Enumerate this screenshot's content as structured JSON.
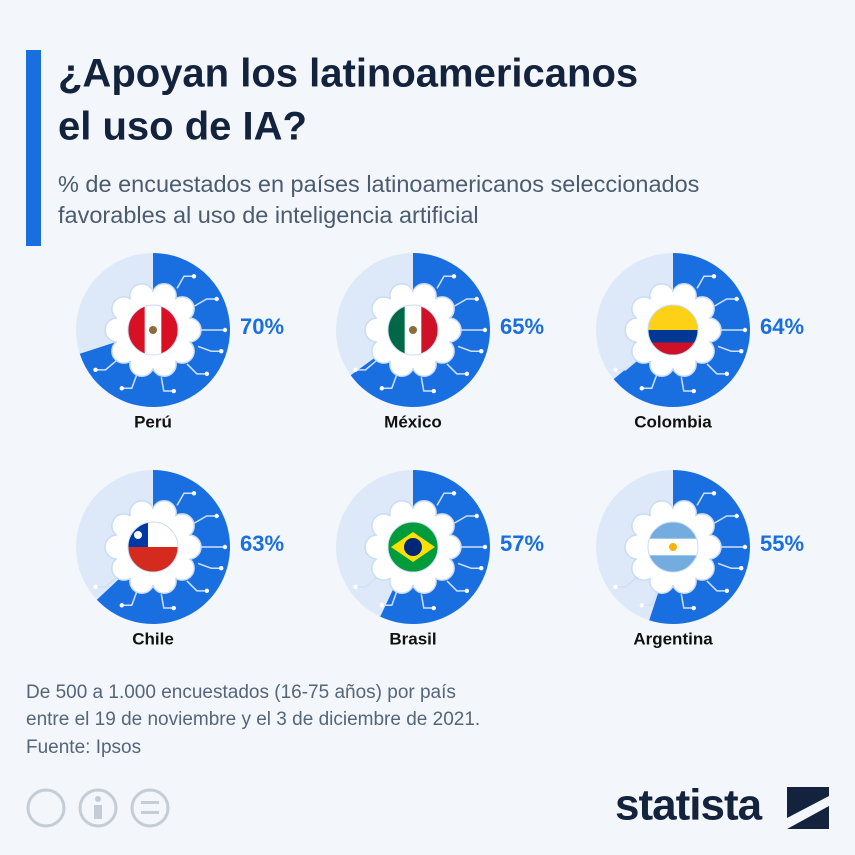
{
  "chart_data": {
    "type": "pie",
    "title": [
      "¿Apoyan los latinoamericanos",
      "el uso de IA?"
    ],
    "subtitle": [
      "% de encuestados en países latinoamericanos seleccionados",
      "favorables al uso de inteligencia artificial"
    ],
    "categories": [
      "Perú",
      "México",
      "Colombia",
      "Chile",
      "Brasil",
      "Argentina"
    ],
    "values": [
      70,
      65,
      64,
      63,
      57,
      55
    ],
    "value_labels": [
      "70%",
      "65%",
      "64%",
      "63%",
      "57%",
      "55%"
    ],
    "color": "#1a6fe0",
    "notes": [
      "De 500 a 1.000 encuestados (16-75 años) por país",
      "entre el 19 de noviembre y el 3 de diciembre de 2021."
    ],
    "source": "Fuente: Ipsos",
    "brand": "statista"
  }
}
